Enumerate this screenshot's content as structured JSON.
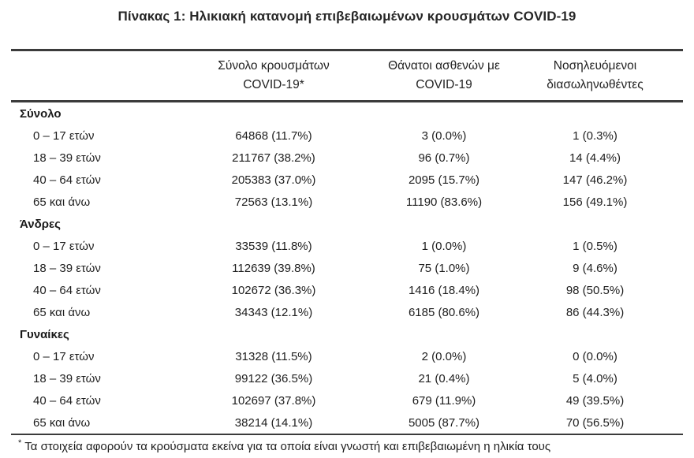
{
  "title": "Πίνακας 1: Ηλικιακή κατανομή επιβεβαιωμένων κρουσμάτων COVID-19",
  "table": {
    "columns": [
      {
        "line1": "Σύνολο κρουσμάτων",
        "line2": "COVID-19*"
      },
      {
        "line1": "Θάνατοι ασθενών με",
        "line2": "COVID-19"
      },
      {
        "line1": "Νοσηλευόμενοι",
        "line2": "διασωληνωθέντες"
      }
    ],
    "sections": [
      {
        "header": "Σύνολο",
        "rows": [
          {
            "label": "0 – 17 ετών",
            "cases": "64868 (11.7%)",
            "deaths": "3 (0.0%)",
            "intubated": "1 (0.3%)"
          },
          {
            "label": "18 – 39 ετών",
            "cases": "211767 (38.2%)",
            "deaths": "96 (0.7%)",
            "intubated": "14 (4.4%)"
          },
          {
            "label": "40 – 64 ετών",
            "cases": "205383 (37.0%)",
            "deaths": "2095 (15.7%)",
            "intubated": "147 (46.2%)"
          },
          {
            "label": "65 και άνω",
            "cases": "72563 (13.1%)",
            "deaths": "11190 (83.6%)",
            "intubated": "156 (49.1%)"
          }
        ]
      },
      {
        "header": "Άνδρες",
        "rows": [
          {
            "label": "0 – 17 ετών",
            "cases": "33539 (11.8%)",
            "deaths": "1 (0.0%)",
            "intubated": "1 (0.5%)"
          },
          {
            "label": "18 – 39 ετών",
            "cases": "112639 (39.8%)",
            "deaths": "75 (1.0%)",
            "intubated": "9 (4.6%)"
          },
          {
            "label": "40 – 64 ετών",
            "cases": "102672 (36.3%)",
            "deaths": "1416 (18.4%)",
            "intubated": "98 (50.5%)"
          },
          {
            "label": "65 και άνω",
            "cases": "34343 (12.1%)",
            "deaths": "6185 (80.6%)",
            "intubated": "86 (44.3%)"
          }
        ]
      },
      {
        "header": "Γυναίκες",
        "rows": [
          {
            "label": "0 – 17 ετών",
            "cases": "31328 (11.5%)",
            "deaths": "2 (0.0%)",
            "intubated": "0 (0.0%)"
          },
          {
            "label": "18 – 39 ετών",
            "cases": "99122 (36.5%)",
            "deaths": "21 (0.4%)",
            "intubated": "5 (4.0%)"
          },
          {
            "label": "40 – 64 ετών",
            "cases": "102697 (37.8%)",
            "deaths": "679 (11.9%)",
            "intubated": "49 (39.5%)"
          },
          {
            "label": "65 και άνω",
            "cases": "38214 (14.1%)",
            "deaths": "5005 (87.7%)",
            "intubated": "70 (56.5%)"
          }
        ]
      }
    ]
  },
  "footnote": {
    "marker": "*",
    "text": "Τα στοιχεία αφορούν τα κρούσματα εκείνα για τα οποία είναι γνωστή και επιβεβαιωμένη η ηλικία τους"
  },
  "colors": {
    "text": "#1e1e1e",
    "rule": "#3b3b3b",
    "background": "#ffffff"
  }
}
